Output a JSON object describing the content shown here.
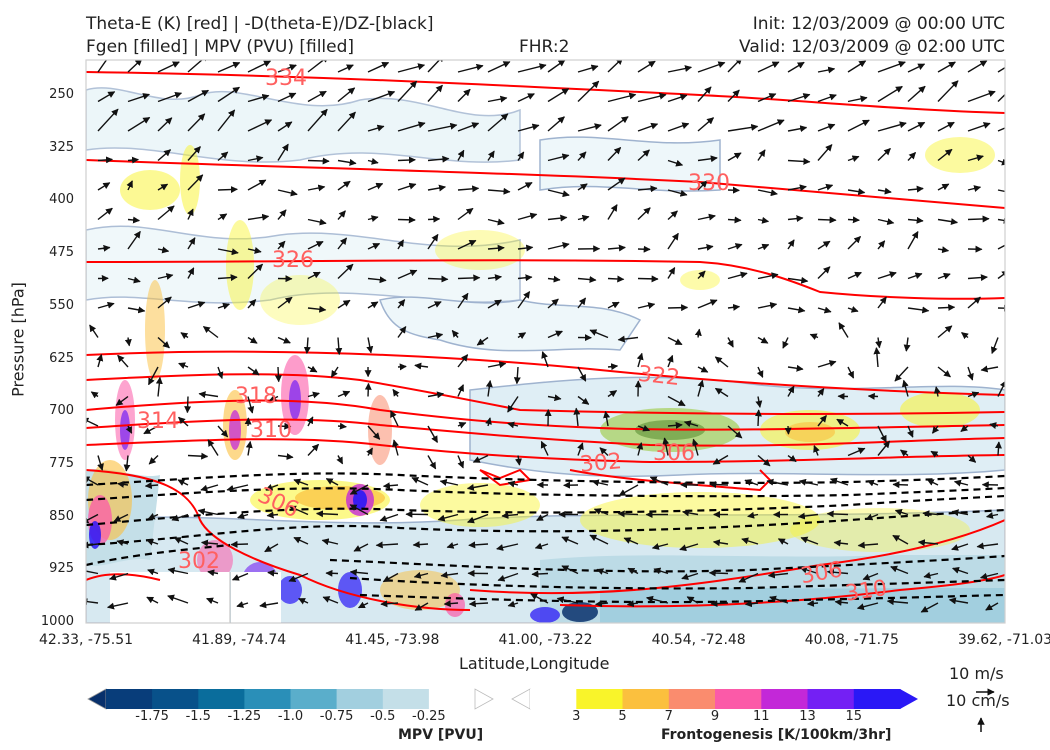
{
  "header": {
    "title_line1": "Theta-E (K) [red] | -D(theta-E)/DZ-[black]",
    "title_line2": "Fgen [filled] | MPV (PVU) [filled]",
    "fhr": "FHR:2",
    "init": "Init: 12/03/2009 @ 00:00 UTC",
    "valid": "Valid: 12/03/2009 @ 02:00 UTC"
  },
  "chart_data": {
    "type": "contour",
    "xlabel": "Latitude,Longitude",
    "ylabel": "Pressure [hPa]",
    "yticks": [
      "250",
      "325",
      "400",
      "475",
      "550",
      "625",
      "700",
      "775",
      "850",
      "925",
      "1000"
    ],
    "xticks": [
      "42.33, -75.51",
      "41.89, -74.74",
      "41.45, -73.98",
      "41.00, -73.22",
      "40.54, -72.48",
      "40.08, -71.75",
      "39.62, -71.03"
    ],
    "theta_e_labels": [
      "334",
      "330",
      "326",
      "322",
      "318",
      "314",
      "310",
      "306",
      "302",
      "306",
      "310",
      "306",
      "302"
    ],
    "mpv_colorbar": {
      "label": "MPV [PVU]",
      "ticks": [
        "-1.75",
        "-1.5",
        "-1.25",
        "-1.0",
        "-0.75",
        "-0.5",
        "-0.25"
      ],
      "colors": [
        "#08306b",
        "#083d7a",
        "#08518a",
        "#0a6d9c",
        "#2a8fb8",
        "#5aaecb",
        "#a2cfdf",
        "#c4dfe8",
        "#ffffff"
      ]
    },
    "fgen_colorbar": {
      "label": "Frontogenesis [K/100km/3hr]",
      "ticks": [
        "3",
        "5",
        "7",
        "9",
        "11",
        "13",
        "15"
      ],
      "colors": [
        "#ffffff",
        "#f9f42a",
        "#fbc03e",
        "#fa8c6e",
        "#fb5aa8",
        "#c328d8",
        "#7420f4",
        "#2a18f6"
      ]
    },
    "wind_reference": {
      "horizontal": "10 m/s",
      "vertical": "10 cm/s"
    },
    "colors": {
      "theta_e": "#ff0000",
      "theta_e_label": "#ff6060",
      "dthetae_dz": "#000000",
      "mpv_outline": "#9fb3cf"
    }
  }
}
